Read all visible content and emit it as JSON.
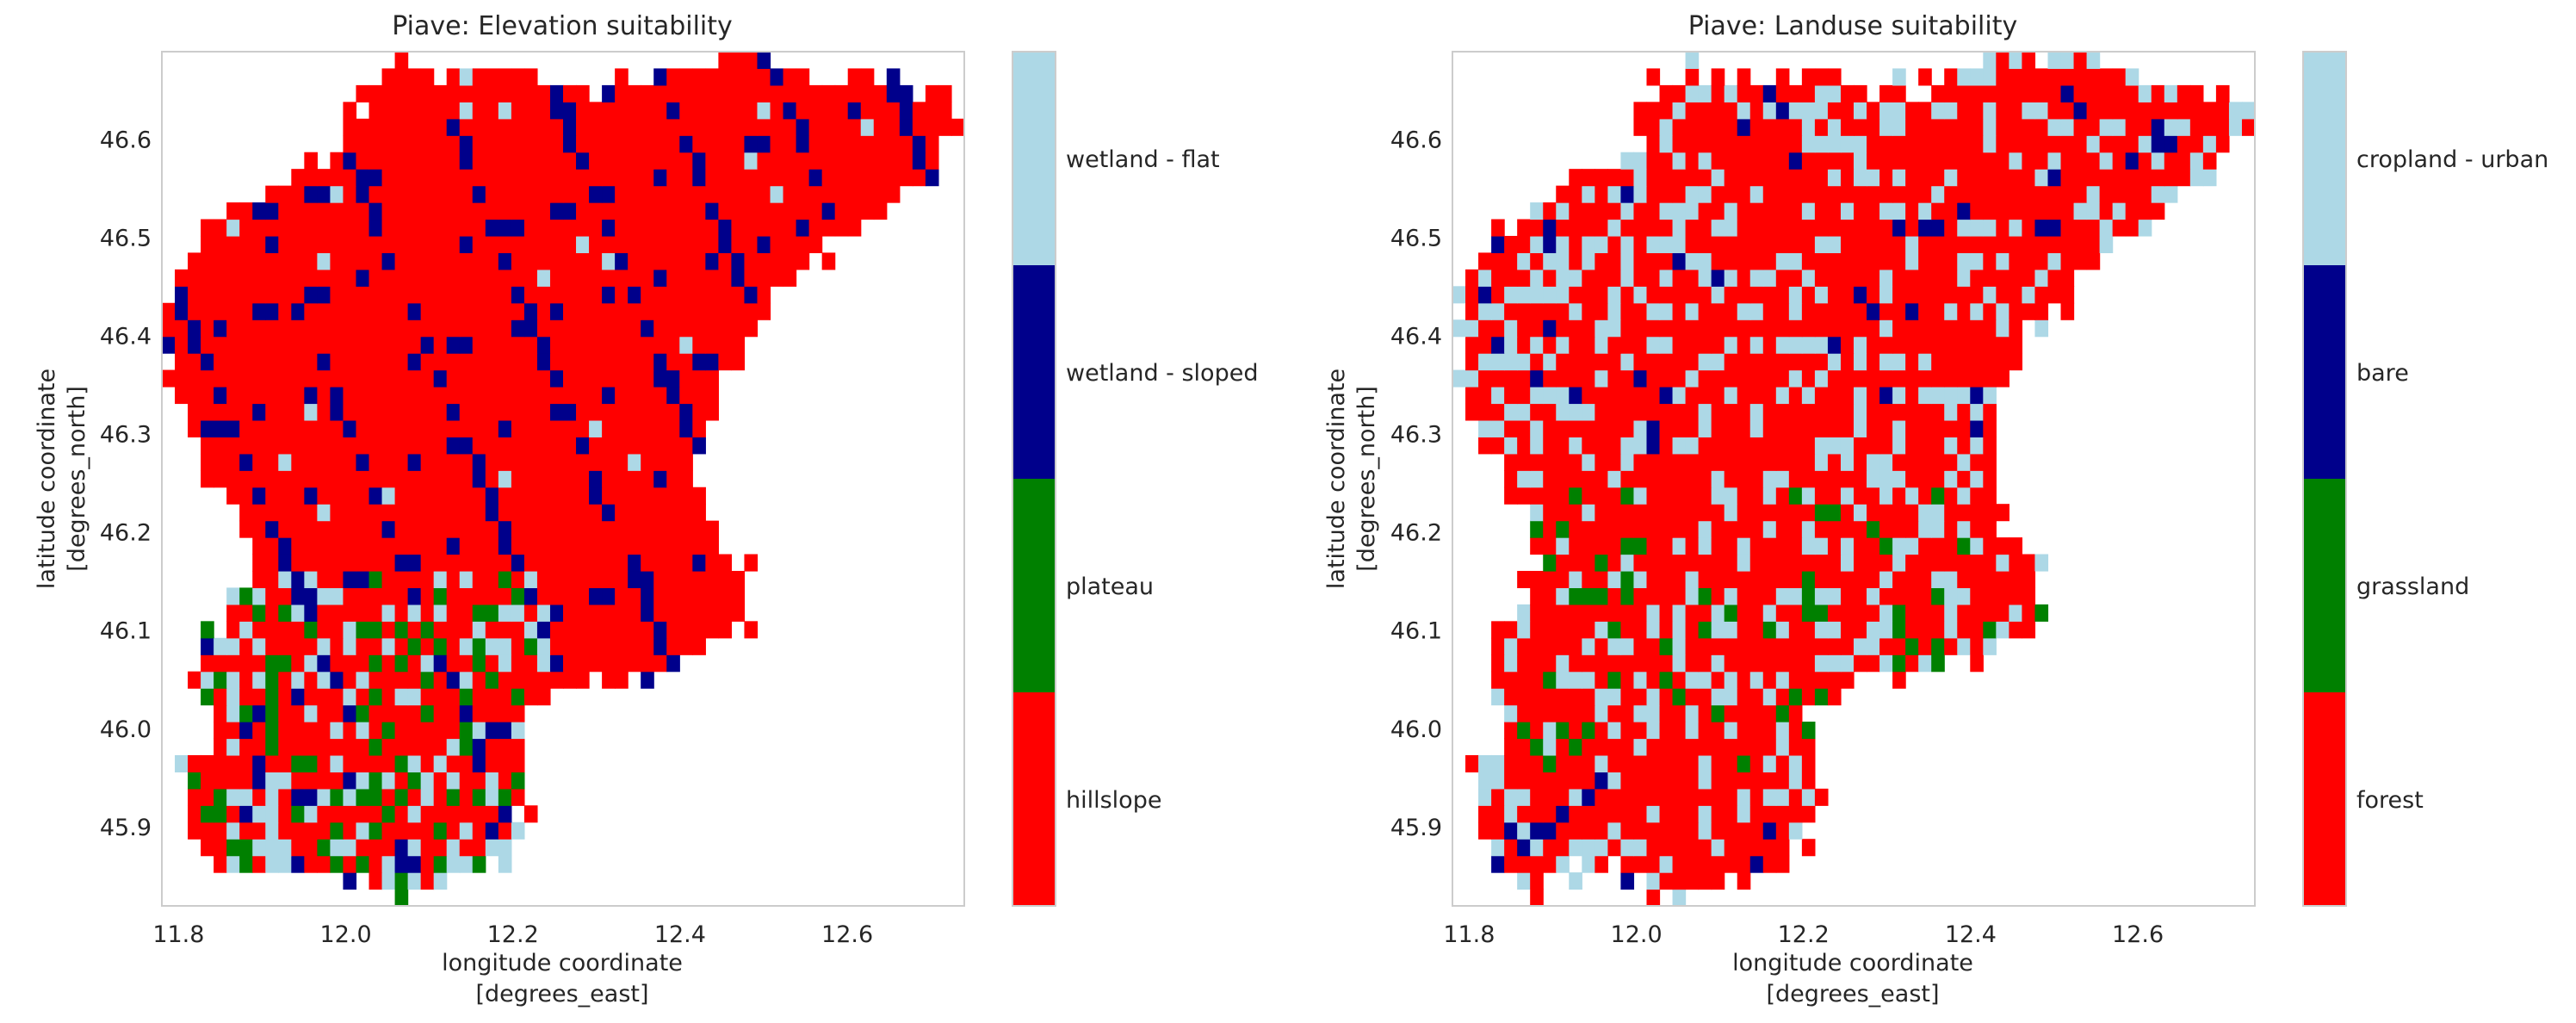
{
  "chart_data": [
    {
      "type": "heatmap",
      "title": "Piave: Elevation suitability",
      "xlabel": [
        "longitude coordinate",
        "[degrees_east]"
      ],
      "ylabel": [
        "latitude coordinate",
        "[degrees_north]"
      ],
      "xlim": [
        11.78,
        12.74
      ],
      "ylim": [
        45.82,
        46.69
      ],
      "x_ticks": [
        11.8,
        12.0,
        12.2,
        12.4,
        12.6
      ],
      "x_tick_labels": [
        "11.8",
        "12.0",
        "12.2",
        "12.4",
        "12.6"
      ],
      "y_ticks": [
        45.9,
        46.0,
        46.1,
        46.2,
        46.3,
        46.4,
        46.5,
        46.6
      ],
      "y_tick_labels": [
        "45.9",
        "46.0",
        "46.1",
        "46.2",
        "46.3",
        "46.4",
        "46.5",
        "46.6"
      ],
      "grid": false,
      "categories": [
        {
          "code": 3,
          "label": "wetland - flat",
          "color": "#add8e6"
        },
        {
          "code": 2,
          "label": "wetland - sloped",
          "color": "#00008b"
        },
        {
          "code": 1,
          "label": "plateau",
          "color": "#008000"
        },
        {
          "code": 0,
          "label": "hillslope",
          "color": "#ff0000"
        }
      ],
      "seed": 7,
      "grid_size": [
        62,
        51
      ],
      "colorbar": "right"
    },
    {
      "type": "heatmap",
      "title": "Piave: Landuse suitability",
      "xlabel": [
        "longitude coordinate",
        "[degrees_east]"
      ],
      "ylabel": [
        "latitude coordinate",
        "[degrees_north]"
      ],
      "xlim": [
        11.78,
        12.74
      ],
      "ylim": [
        45.82,
        46.69
      ],
      "x_ticks": [
        11.8,
        12.0,
        12.2,
        12.4,
        12.6
      ],
      "x_tick_labels": [
        "11.8",
        "12.0",
        "12.2",
        "12.4",
        "12.6"
      ],
      "y_ticks": [
        45.9,
        46.0,
        46.1,
        46.2,
        46.3,
        46.4,
        46.5,
        46.6
      ],
      "y_tick_labels": [
        "45.9",
        "46.0",
        "46.1",
        "46.2",
        "46.3",
        "46.4",
        "46.5",
        "46.6"
      ],
      "grid": false,
      "categories": [
        {
          "code": 3,
          "label": "cropland - urban",
          "color": "#add8e6"
        },
        {
          "code": 2,
          "label": "bare",
          "color": "#00008b"
        },
        {
          "code": 1,
          "label": "grassland",
          "color": "#008000"
        },
        {
          "code": 0,
          "label": "forest",
          "color": "#ff0000"
        }
      ],
      "seed": 19,
      "grid_size": [
        62,
        51
      ],
      "colorbar": "right"
    }
  ]
}
